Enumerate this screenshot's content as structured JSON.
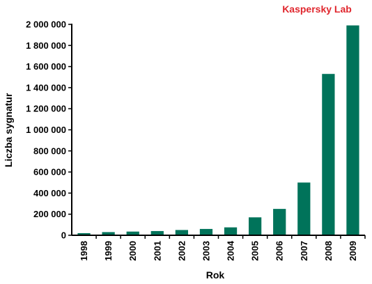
{
  "brand": {
    "label": "Kaspersky Lab",
    "color": "#e0262d"
  },
  "chart_data": {
    "type": "bar",
    "title": "",
    "xlabel": "Rok",
    "ylabel": "Liczba sygnatur",
    "categories": [
      "1998",
      "1999",
      "2000",
      "2001",
      "2002",
      "2003",
      "2004",
      "2005",
      "2006",
      "2007",
      "2008",
      "2009"
    ],
    "values": [
      20000,
      30000,
      35000,
      40000,
      50000,
      60000,
      75000,
      170000,
      250000,
      500000,
      1530000,
      1990000
    ],
    "ylim": [
      0,
      2000000
    ],
    "yticks": [
      0,
      200000,
      400000,
      600000,
      800000,
      1000000,
      1200000,
      1400000,
      1600000,
      1800000,
      2000000
    ],
    "ytick_labels": [
      "0",
      "200 000",
      "400 000",
      "600 000",
      "800 000",
      "1 000 000",
      "1 200 000",
      "1 400 000",
      "1 600 000",
      "1 800 000",
      "2 000 000"
    ],
    "grid": false,
    "bar_color": "#00735a"
  }
}
